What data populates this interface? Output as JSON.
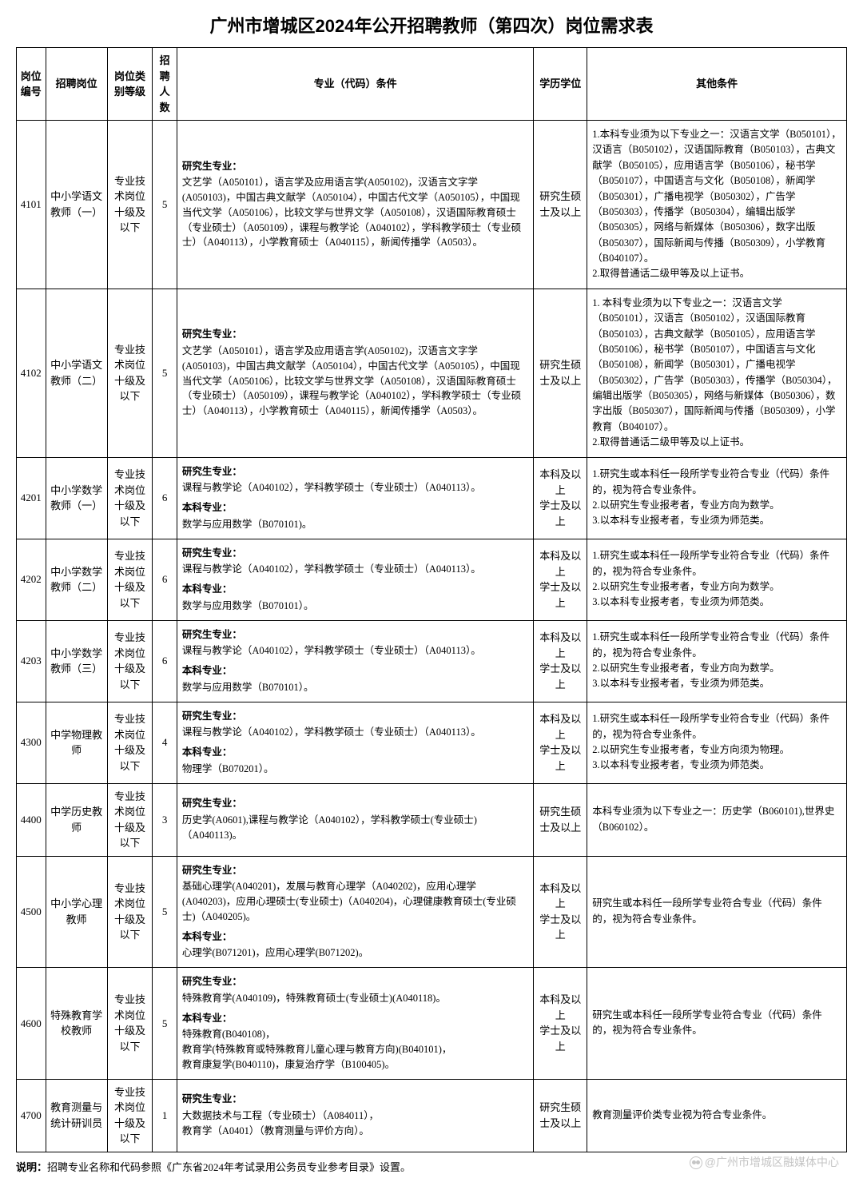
{
  "title": "广州市增城区2024年公开招聘教师（第四次）岗位需求表",
  "headers": {
    "code": "岗位编号",
    "position": "招聘岗位",
    "level": "岗位类别等级",
    "count": "招聘人数",
    "major": "专业（代码）条件",
    "education": "学历学位",
    "other": "其他条件"
  },
  "labels": {
    "grad": "研究生专业：",
    "undergrad": "本科专业："
  },
  "rows": [
    {
      "code": "4101",
      "position": "中小学语文教师（一）",
      "level": "专业技术岗位十级及以下",
      "count": "5",
      "grad": "文艺学（A050101），语言学及应用语言学(A050102)，汉语言文字学(A050103)，中国古典文献学（A050104），中国古代文学（A050105），中国现当代文学（A050106），比较文学与世界文学（A050108），汉语国际教育硕士（专业硕士）（A050109），课程与教学论（A040102），学科教学硕士（专业硕士）（A040113），小学教育硕士（A040115），新闻传播学（A0503）。",
      "undergrad": "",
      "education": "研究生硕士及以上",
      "other": "1.本科专业须为以下专业之一：汉语言文学（B050101），汉语言（B050102），汉语国际教育（B050103），古典文献学（B050105），应用语言学（B050106），秘书学（B050107），中国语言与文化（B050108），新闻学（B050301），广播电视学（B050302），广告学（B050303），传播学（B050304），编辑出版学（B050305），网络与新媒体（B050306），数字出版（B050307），国际新闻与传播（B050309），小学教育（B040107）。\n2.取得普通话二级甲等及以上证书。"
    },
    {
      "code": "4102",
      "position": "中小学语文教师（二）",
      "level": "专业技术岗位十级及以下",
      "count": "5",
      "grad": "文艺学（A050101），语言学及应用语言学(A050102)，汉语言文字学(A050103)，中国古典文献学（A050104），中国古代文学（A050105），中国现当代文学（A050106），比较文学与世界文学（A050108），汉语国际教育硕士（专业硕士）（A050109），课程与教学论（A040102），学科教学硕士（专业硕士）（A040113），小学教育硕士（A040115），新闻传播学（A0503）。",
      "undergrad": "",
      "education": "研究生硕士及以上",
      "other": "1. 本科专业须为以下专业之一：汉语言文学（B050101），汉语言（B050102），汉语国际教育（B050103），古典文献学（B050105），应用语言学（B050106），秘书学（B050107），中国语言与文化（B050108），新闻学（B050301），广播电视学（B050302），广告学（B050303），传播学（B050304），编辑出版学（B050305），网络与新媒体（B050306），数字出版（B050307），国际新闻与传播（B050309），小学教育（B040107）。\n2.取得普通话二级甲等及以上证书。"
    },
    {
      "code": "4201",
      "position": "中小学数学教师（一）",
      "level": "专业技术岗位十级及以下",
      "count": "6",
      "grad": "课程与教学论（A040102），学科教学硕士（专业硕士）（A040113）。",
      "undergrad": "数学与应用数学（B070101)。",
      "education": "本科及以上\n学士及以上",
      "other": "1.研究生或本科任一段所学专业符合专业（代码）条件的，视为符合专业条件。\n2.以研究生专业报考者，专业方向为数学。\n3.以本科专业报考者，专业须为师范类。"
    },
    {
      "code": "4202",
      "position": "中小学数学教师（二）",
      "level": "专业技术岗位十级及以下",
      "count": "6",
      "grad": "课程与教学论（A040102），学科教学硕士（专业硕士）（A040113）。",
      "undergrad": "数学与应用数学（B070101）。",
      "education": "本科及以上\n学士及以上",
      "other": "1.研究生或本科任一段所学专业符合专业（代码）条件的，视为符合专业条件。\n2.以研究生专业报考者，专业方向为数学。\n3.以本科专业报考者，专业须为师范类。"
    },
    {
      "code": "4203",
      "position": "中小学数学教师（三）",
      "level": "专业技术岗位十级及以下",
      "count": "6",
      "grad": "课程与教学论（A040102），学科教学硕士（专业硕士）（A040113）。",
      "undergrad": "数学与应用数学（B070101）。",
      "education": "本科及以上\n学士及以上",
      "other": "1.研究生或本科任一段所学专业符合专业（代码）条件的，视为符合专业条件。\n2.以研究生专业报考者，专业方向为数学。\n3.以本科专业报考者，专业须为师范类。"
    },
    {
      "code": "4300",
      "position": "中学物理教师",
      "level": "专业技术岗位十级及以下",
      "count": "4",
      "grad": "课程与教学论（A040102），学科教学硕士（专业硕士）（A040113）。",
      "undergrad": "物理学（B070201）。",
      "education": "本科及以上\n学士及以上",
      "other": "1.研究生或本科任一段所学专业符合专业（代码）条件的，视为符合专业条件。\n2.以研究生专业报考者，专业方向须为物理。\n3.以本科专业报考者，专业须为师范类。"
    },
    {
      "code": "4400",
      "position": "中学历史教师",
      "level": "专业技术岗位十级及以下",
      "count": "3",
      "grad": "历史学(A0601),课程与教学论（A040102），学科教学硕士(专业硕士)（A040113)。",
      "undergrad": "",
      "education": "研究生硕士及以上",
      "other": "本科专业须为以下专业之一：历史学（B060101),世界史（B060102）。"
    },
    {
      "code": "4500",
      "position": "中小学心理教师",
      "level": "专业技术岗位十级及以下",
      "count": "5",
      "grad": "基础心理学(A040201)，发展与教育心理学（A040202)，应用心理学(A040203)，应用心理硕士(专业硕士)（A040204)，心理健康教育硕士(专业硕士)（A040205)。",
      "undergrad": "心理学(B071201)，应用心理学(B071202)。",
      "education": "本科及以上\n学士及以上",
      "other": "研究生或本科任一段所学专业符合专业（代码）条件的，视为符合专业条件。"
    },
    {
      "code": "4600",
      "position": "特殊教育学校教师",
      "level": "专业技术岗位十级及以下",
      "count": "5",
      "grad": "特殊教育学(A040109)，特殊教育硕士(专业硕士)(A040118)。",
      "undergrad": "特殊教育(B040108)，\n教育学(特殊教育或特殊教育儿童心理与教育方向)(B040101)，\n教育康复学(B040110)，康复治疗学（B100405)。",
      "education": "本科及以上\n学士及以上",
      "other": "研究生或本科任一段所学专业符合专业（代码）条件的，视为符合专业条件。"
    },
    {
      "code": "4700",
      "position": "教育测量与统计研训员",
      "level": "专业技术岗位十级及以下",
      "count": "1",
      "grad": "大数据技术与工程（专业硕士）（A084011），\n教育学（A0401）（教育测量与评价方向）。",
      "undergrad": "",
      "education": "研究生硕士及以上",
      "other": "教育测量评价类专业视为符合专业条件。"
    }
  ],
  "note_label": "说明：",
  "note_text": "招聘专业名称和代码参照《广东省2024年考试录用公务员专业参考目录》设置。",
  "watermark": "@广州市增城区融媒体中心"
}
